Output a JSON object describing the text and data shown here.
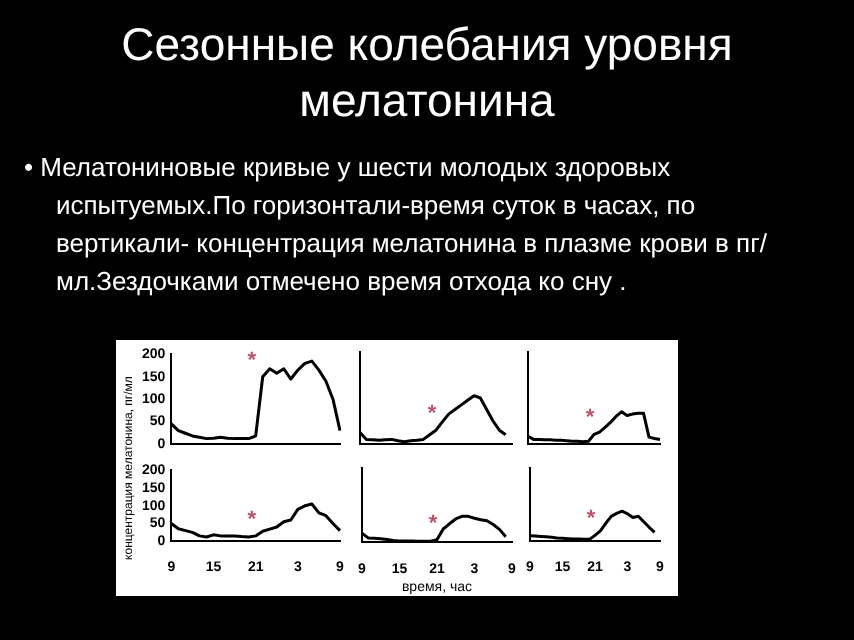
{
  "chart_data": [
    {
      "type": "line",
      "title": "Сезонные колебания уровня мелатонина",
      "subtitle": "• Мелатониновые кривые у шести молодых здоровых испытуемых.По горизонтали-время суток в часах, по вертикали- концентрация мелатонина в плазме крови в пг/мл.Зездочками отмечено время отхода ко сну .",
      "ylabel": "концентрация мелатонина, пг/мл",
      "categories": [
        "9",
        null,
        null,
        null,
        null,
        null,
        "15",
        null,
        null,
        null,
        null,
        null,
        "21",
        null,
        null,
        null,
        null,
        null,
        "3",
        null,
        null,
        null,
        null,
        null,
        "9"
      ],
      "series": [
        {
          "color": "#000000",
          "values": [
            45,
            30,
            24,
            18,
            15,
            12,
            13,
            15,
            13,
            12,
            12,
            12,
            18,
            150,
            168,
            158,
            168,
            145,
            165,
            180,
            185,
            165,
            140,
            100,
            30
          ]
        }
      ],
      "annotations": [
        {
          "text": "*",
          "x": "21",
          "y": 150
        }
      ],
      "ylim": [
        0,
        200
      ],
      "yticks": [
        0,
        50,
        100,
        150,
        200
      ],
      "tick_labels": "y",
      "grid": false,
      "marker": "none",
      "legend": false
    },
    {
      "type": "line",
      "categories": [
        "9",
        null,
        null,
        null,
        null,
        null,
        "15",
        null,
        null,
        null,
        null,
        null,
        "21",
        null,
        null,
        null,
        null,
        null,
        "3",
        null,
        null,
        null,
        null,
        null,
        "9"
      ],
      "series": [
        {
          "color": "#000000",
          "values": [
            25,
            10,
            9,
            8,
            9,
            10,
            7,
            5,
            7,
            8,
            10,
            20,
            30,
            48,
            65,
            75,
            85,
            95,
            105,
            100,
            75,
            50,
            30,
            20,
            null
          ]
        }
      ],
      "annotations": [
        {
          "text": "*",
          "x": "21",
          "y": 30
        }
      ],
      "ylim": [
        0,
        200
      ],
      "yticks": [
        0,
        50,
        100,
        150,
        200
      ],
      "tick_labels": false,
      "grid": false,
      "marker": "none",
      "legend": false
    },
    {
      "type": "line",
      "categories": [
        "9",
        null,
        null,
        null,
        null,
        null,
        "15",
        null,
        null,
        null,
        null,
        null,
        "21",
        null,
        null,
        null,
        null,
        null,
        "3",
        null,
        null,
        null,
        null,
        null,
        "9"
      ],
      "series": [
        {
          "color": "#000000",
          "values": [
            17,
            10,
            10,
            9,
            9,
            8,
            8,
            7,
            6,
            6,
            5,
            6,
            21,
            26,
            36,
            47,
            60,
            70,
            62,
            65,
            67,
            67,
            15,
            12,
            10
          ]
        }
      ],
      "annotations": [
        {
          "text": "*",
          "x": "21",
          "y": 21
        }
      ],
      "ylim": [
        0,
        200
      ],
      "yticks": [
        0,
        50,
        100,
        150,
        200
      ],
      "tick_labels": false,
      "grid": false,
      "marker": "none",
      "legend": false
    },
    {
      "type": "line",
      "categories": [
        "9",
        null,
        null,
        null,
        null,
        null,
        "15",
        null,
        null,
        null,
        null,
        null,
        "21",
        null,
        null,
        null,
        null,
        null,
        "3",
        null,
        null,
        null,
        null,
        null,
        "9"
      ],
      "series": [
        {
          "color": "#000000",
          "values": [
            50,
            35,
            30,
            25,
            15,
            12,
            18,
            15,
            15,
            15,
            13,
            12,
            15,
            28,
            34,
            40,
            55,
            60,
            90,
            100,
            105,
            80,
            72,
            50,
            30
          ]
        }
      ],
      "annotations": [
        {
          "text": "*",
          "x": "21",
          "y": 15
        }
      ],
      "ylim": [
        0,
        200
      ],
      "yticks": [
        0,
        50,
        100,
        150,
        200
      ],
      "grid": false,
      "marker": "none",
      "legend": false
    },
    {
      "type": "line",
      "xlabel": "время, час",
      "categories": [
        "9",
        null,
        null,
        null,
        null,
        null,
        "15",
        null,
        null,
        null,
        null,
        null,
        "21",
        null,
        null,
        null,
        null,
        null,
        "3",
        null,
        null,
        null,
        null,
        null,
        "9"
      ],
      "series": [
        {
          "color": "#000000",
          "values": [
            25,
            12,
            11,
            10,
            8,
            5,
            4,
            4,
            4,
            3,
            3,
            3,
            7,
            36,
            50,
            63,
            70,
            70,
            65,
            61,
            58,
            48,
            35,
            15,
            null
          ]
        }
      ],
      "annotations": [
        {
          "text": "*",
          "x": "21",
          "y": 7
        }
      ],
      "ylim": [
        0,
        200
      ],
      "yticks": [
        0,
        50,
        100,
        150,
        200
      ],
      "tick_labels": "x",
      "grid": false,
      "marker": "none",
      "legend": false
    },
    {
      "type": "line",
      "categories": [
        "9",
        null,
        null,
        null,
        null,
        null,
        "15",
        null,
        null,
        null,
        null,
        null,
        "21",
        null,
        null,
        null,
        null,
        null,
        "3",
        null,
        null,
        null,
        null,
        null,
        "9"
      ],
      "series": [
        {
          "color": "#000000",
          "values": [
            15,
            14,
            13,
            12,
            11,
            9,
            8,
            7,
            6,
            6,
            5,
            5,
            16,
            28,
            49,
            68,
            76,
            82,
            75,
            65,
            68,
            53,
            38,
            24,
            null
          ]
        }
      ],
      "annotations": [
        {
          "text": "*",
          "x": "21",
          "y": 16
        }
      ],
      "ylim": [
        0,
        200
      ],
      "yticks": [
        0,
        50,
        100,
        150,
        200
      ],
      "tick_labels": "x",
      "grid": false,
      "marker": "none",
      "legend": false
    }
  ]
}
